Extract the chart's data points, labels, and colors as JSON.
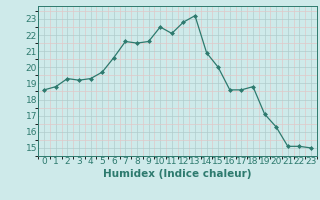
{
  "x": [
    0,
    1,
    2,
    3,
    4,
    5,
    6,
    7,
    8,
    9,
    10,
    11,
    12,
    13,
    14,
    15,
    16,
    17,
    18,
    19,
    20,
    21,
    22,
    23
  ],
  "y": [
    18.6,
    18.8,
    19.3,
    19.2,
    19.3,
    19.7,
    20.6,
    21.6,
    21.5,
    21.6,
    22.5,
    22.1,
    22.8,
    23.2,
    20.9,
    20.0,
    18.6,
    18.6,
    18.8,
    17.1,
    16.3,
    15.1,
    15.1,
    15.0
  ],
  "line_color": "#2d7a6e",
  "marker": "D",
  "marker_size": 2.0,
  "bg_color": "#ceeaea",
  "grid_major_color": "#b8d8d8",
  "grid_minor_color": "#daf0f0",
  "xlabel": "Humidex (Indice chaleur)",
  "xlabel_fontsize": 7.5,
  "tick_fontsize": 6.5,
  "ylim": [
    14.5,
    23.8
  ],
  "xlim": [
    -0.5,
    23.5
  ],
  "yticks": [
    15,
    16,
    17,
    18,
    19,
    20,
    21,
    22,
    23
  ],
  "xticks": [
    0,
    1,
    2,
    3,
    4,
    5,
    6,
    7,
    8,
    9,
    10,
    11,
    12,
    13,
    14,
    15,
    16,
    17,
    18,
    19,
    20,
    21,
    22,
    23
  ]
}
